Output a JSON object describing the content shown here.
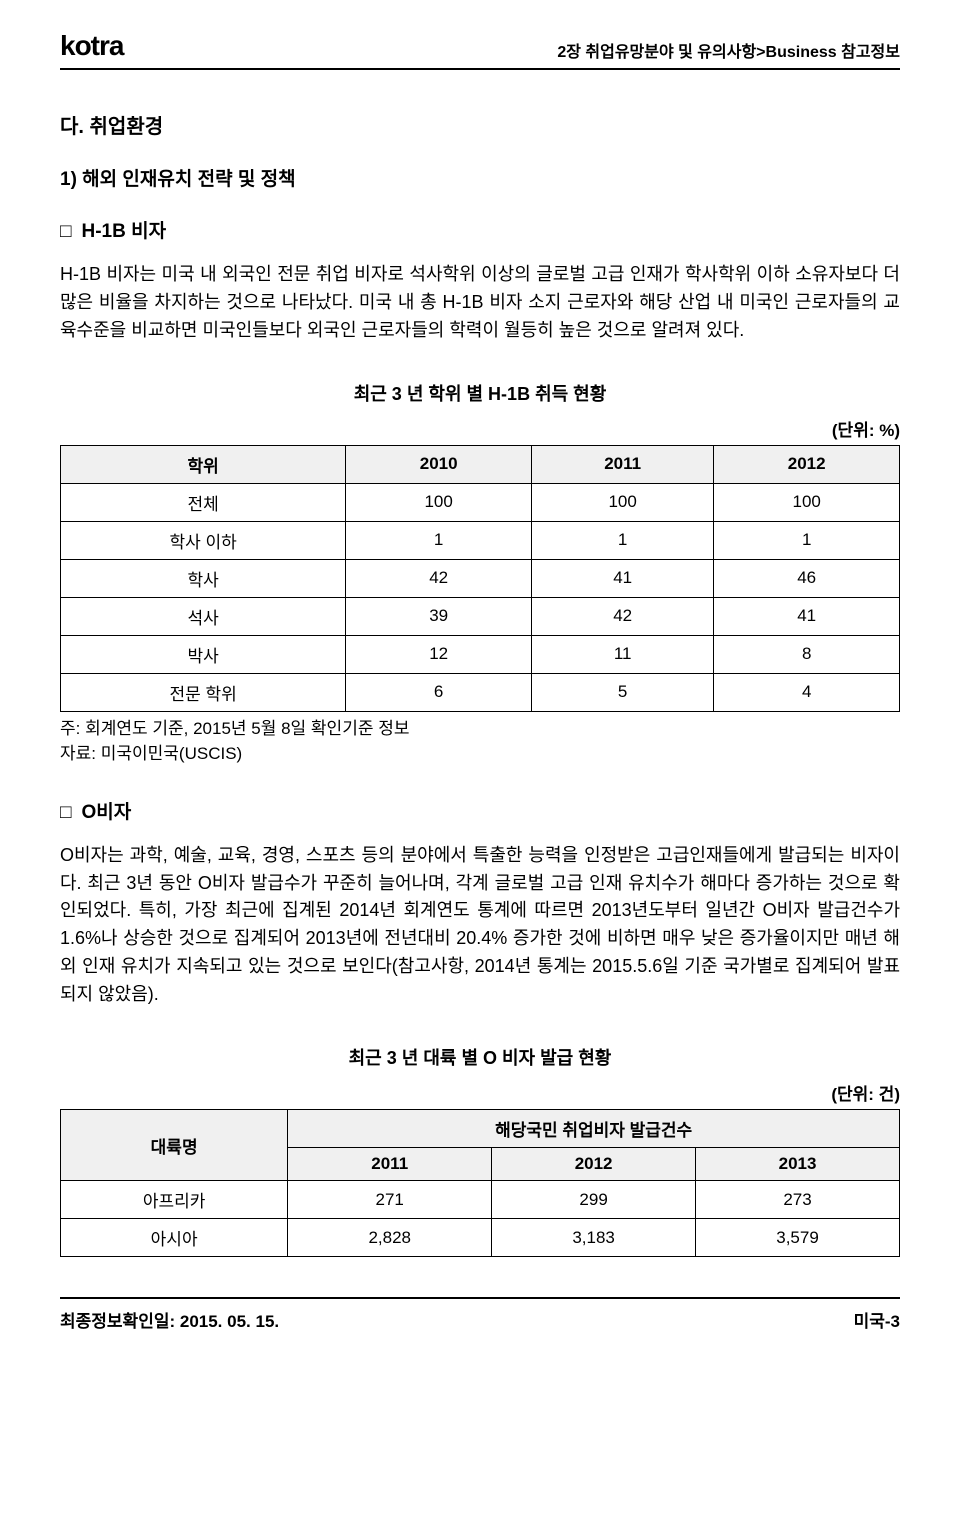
{
  "header": {
    "logo": "kotra",
    "breadcrumb": "2장 취업유망분야 및 유의사항>Business 참고정보"
  },
  "section": {
    "title": "다. 취업환경",
    "sub1": "1) 해외 인재유치 전략 및 정책",
    "bullet1": "H-1B 비자",
    "para1": "H-1B 비자는 미국 내 외국인 전문 취업 비자로 석사학위 이상의 글로벌 고급 인재가 학사학위 이하 소유자보다 더 많은 비율을 차지하는 것으로 나타났다. 미국 내 총 H-1B 비자 소지 근로자와 해당 산업 내 미국인 근로자들의 교육수준을 비교하면 미국인들보다 외국인 근로자들의 학력이 월등히 높은 것으로 알려져 있다."
  },
  "table1": {
    "title": "최근 3 년 학위 별 H-1B 취득 현황",
    "unit": "(단위: %)",
    "columns": [
      "학위",
      "2010",
      "2011",
      "2012"
    ],
    "rows": [
      [
        "전체",
        "100",
        "100",
        "100"
      ],
      [
        "학사 이하",
        "1",
        "1",
        "1"
      ],
      [
        "학사",
        "42",
        "41",
        "46"
      ],
      [
        "석사",
        "39",
        "42",
        "41"
      ],
      [
        "박사",
        "12",
        "11",
        "8"
      ],
      [
        "전문 학위",
        "6",
        "5",
        "4"
      ]
    ],
    "note1": "주: 회계연도 기준, 2015년 5월 8일 확인기준 정보",
    "note2": "자료: 미국이민국(USCIS)",
    "header_bg": "#f0f0f0",
    "border_color": "#000000"
  },
  "section2": {
    "bullet2": "O비자",
    "para2": "O비자는 과학, 예술, 교육, 경영, 스포츠 등의 분야에서 특출한 능력을 인정받은 고급인재들에게 발급되는 비자이다. 최근 3년 동안 O비자 발급수가 꾸준히 늘어나며, 각계 글로벌 고급 인재 유치수가 해마다 증가하는 것으로 확인되었다. 특히, 가장 최근에 집계된 2014년 회계연도 통계에 따르면 2013년도부터 일년간 O비자 발급건수가 1.6%나 상승한 것으로 집계되어 2013년에 전년대비 20.4% 증가한 것에 비하면 매우 낮은 증가율이지만 매년 해외 인재 유치가 지속되고 있는 것으로 보인다(참고사항, 2014년 통계는 2015.5.6일 기준 국가별로 집계되어 발표되지 않았음)."
  },
  "table2": {
    "title": "최근 3 년 대륙 별 O 비자 발급 현황",
    "unit": "(단위: 건)",
    "header_top": "해당국민 취업비자 발급건수",
    "row_header": "대륙명",
    "columns": [
      "2011",
      "2012",
      "2013"
    ],
    "rows": [
      [
        "아프리카",
        "271",
        "299",
        "273"
      ],
      [
        "아시아",
        "2,828",
        "3,183",
        "3,579"
      ]
    ],
    "header_bg": "#f0f0f0",
    "border_color": "#000000"
  },
  "footer": {
    "left": "최종정보확인일: 2015. 05. 15.",
    "right": "미국-3"
  }
}
